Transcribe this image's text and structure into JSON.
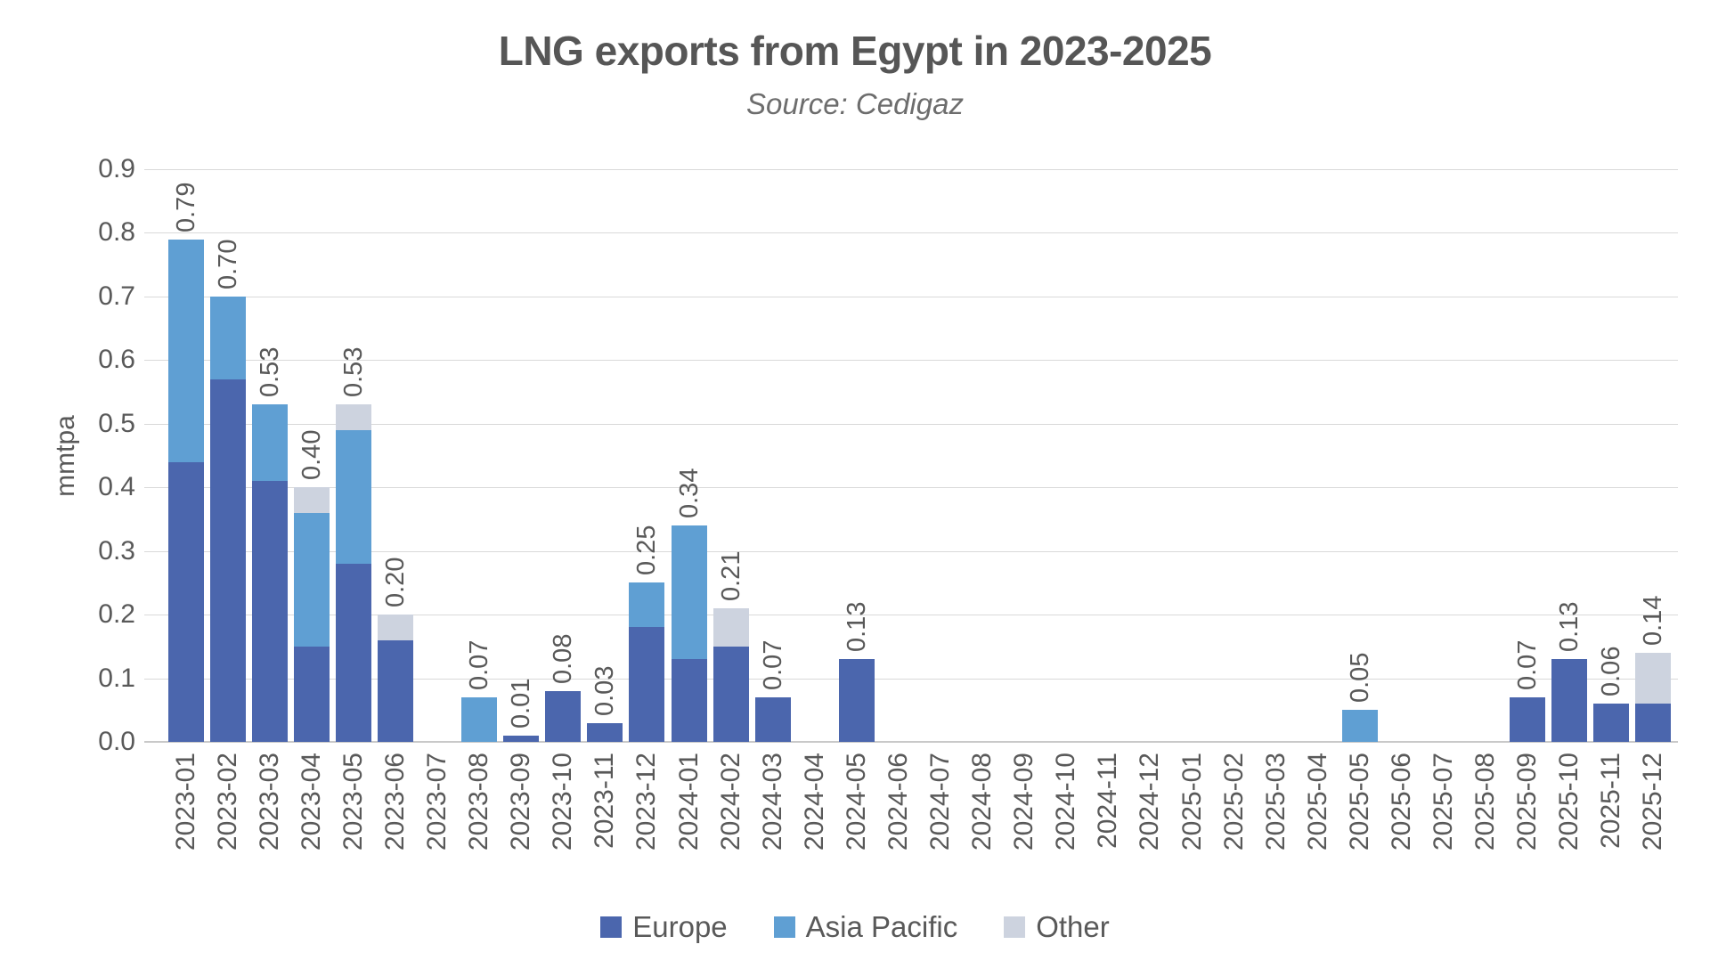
{
  "title": "LNG exports from Egypt in 2023-2025",
  "subtitle": "Source: Cedigaz",
  "colors": {
    "europe": "#4b66ad",
    "asia_pacific": "#5f9fd3",
    "other": "#cdd3df",
    "gridline": "#d9d9d9",
    "text": "#595959"
  },
  "chart_data": {
    "type": "bar",
    "stacked": true,
    "title": "LNG exports from Egypt in 2023-2025",
    "subtitle": "Source: Cedigaz",
    "xlabel": "",
    "ylabel": "mmtpa",
    "ylim": [
      0,
      0.9
    ],
    "yticks": [
      "0.0",
      "0.1",
      "0.2",
      "0.3",
      "0.4",
      "0.5",
      "0.6",
      "0.7",
      "0.8",
      "0.9"
    ],
    "grid": true,
    "legend_position": "bottom",
    "categories": [
      "2023-01",
      "2023-02",
      "2023-03",
      "2023-04",
      "2023-05",
      "2023-06",
      "2023-07",
      "2023-08",
      "2023-09",
      "2023-10",
      "2023-11",
      "2023-12",
      "2024-01",
      "2024-02",
      "2024-03",
      "2024-04",
      "2024-05",
      "2024-06",
      "2024-07",
      "2024-08",
      "2024-09",
      "2024-10",
      "2024-11",
      "2024-12",
      "2025-01",
      "2025-02",
      "2025-03",
      "2025-04",
      "2025-05",
      "2025-06",
      "2025-07",
      "2025-08",
      "2025-09",
      "2025-10",
      "2025-11",
      "2025-12"
    ],
    "series": [
      {
        "name": "Europe",
        "color": "#4b66ad",
        "values": [
          0.44,
          0.57,
          0.41,
          0.15,
          0.28,
          0.16,
          0,
          0,
          0.01,
          0.08,
          0.03,
          0.18,
          0.13,
          0.15,
          0.07,
          0,
          0.13,
          0,
          0,
          0,
          0,
          0,
          0,
          0,
          0,
          0,
          0,
          0,
          0,
          0,
          0,
          0,
          0.07,
          0.13,
          0.06,
          0.06
        ]
      },
      {
        "name": "Asia Pacific",
        "color": "#5f9fd3",
        "values": [
          0.35,
          0.13,
          0.12,
          0.21,
          0.21,
          0,
          0,
          0.07,
          0,
          0,
          0,
          0.07,
          0.21,
          0,
          0,
          0,
          0,
          0,
          0,
          0,
          0,
          0,
          0,
          0,
          0,
          0,
          0,
          0,
          0.05,
          0,
          0,
          0,
          0,
          0,
          0,
          0
        ]
      },
      {
        "name": "Other",
        "color": "#cdd3df",
        "values": [
          0,
          0,
          0,
          0.04,
          0.04,
          0.04,
          0,
          0,
          0,
          0,
          0,
          0,
          0,
          0.06,
          0,
          0,
          0,
          0,
          0,
          0,
          0,
          0,
          0,
          0,
          0,
          0,
          0,
          0,
          0,
          0,
          0,
          0,
          0,
          0,
          0,
          0.08
        ]
      }
    ],
    "total_labels": [
      "0.79",
      "0.70",
      "0.53",
      "0.40",
      "0.53",
      "0.20",
      null,
      "0.07",
      "0.01",
      "0.08",
      "0.03",
      "0.25",
      "0.34",
      "0.21",
      "0.07",
      null,
      "0.13",
      null,
      null,
      null,
      null,
      null,
      null,
      null,
      null,
      null,
      null,
      null,
      "0.05",
      null,
      null,
      null,
      "0.07",
      "0.13",
      "0.06",
      "0.14"
    ]
  },
  "legend": {
    "items": [
      {
        "label": "Europe",
        "color": "#4b66ad"
      },
      {
        "label": "Asia Pacific",
        "color": "#5f9fd3"
      },
      {
        "label": "Other",
        "color": "#cdd3df"
      }
    ]
  }
}
